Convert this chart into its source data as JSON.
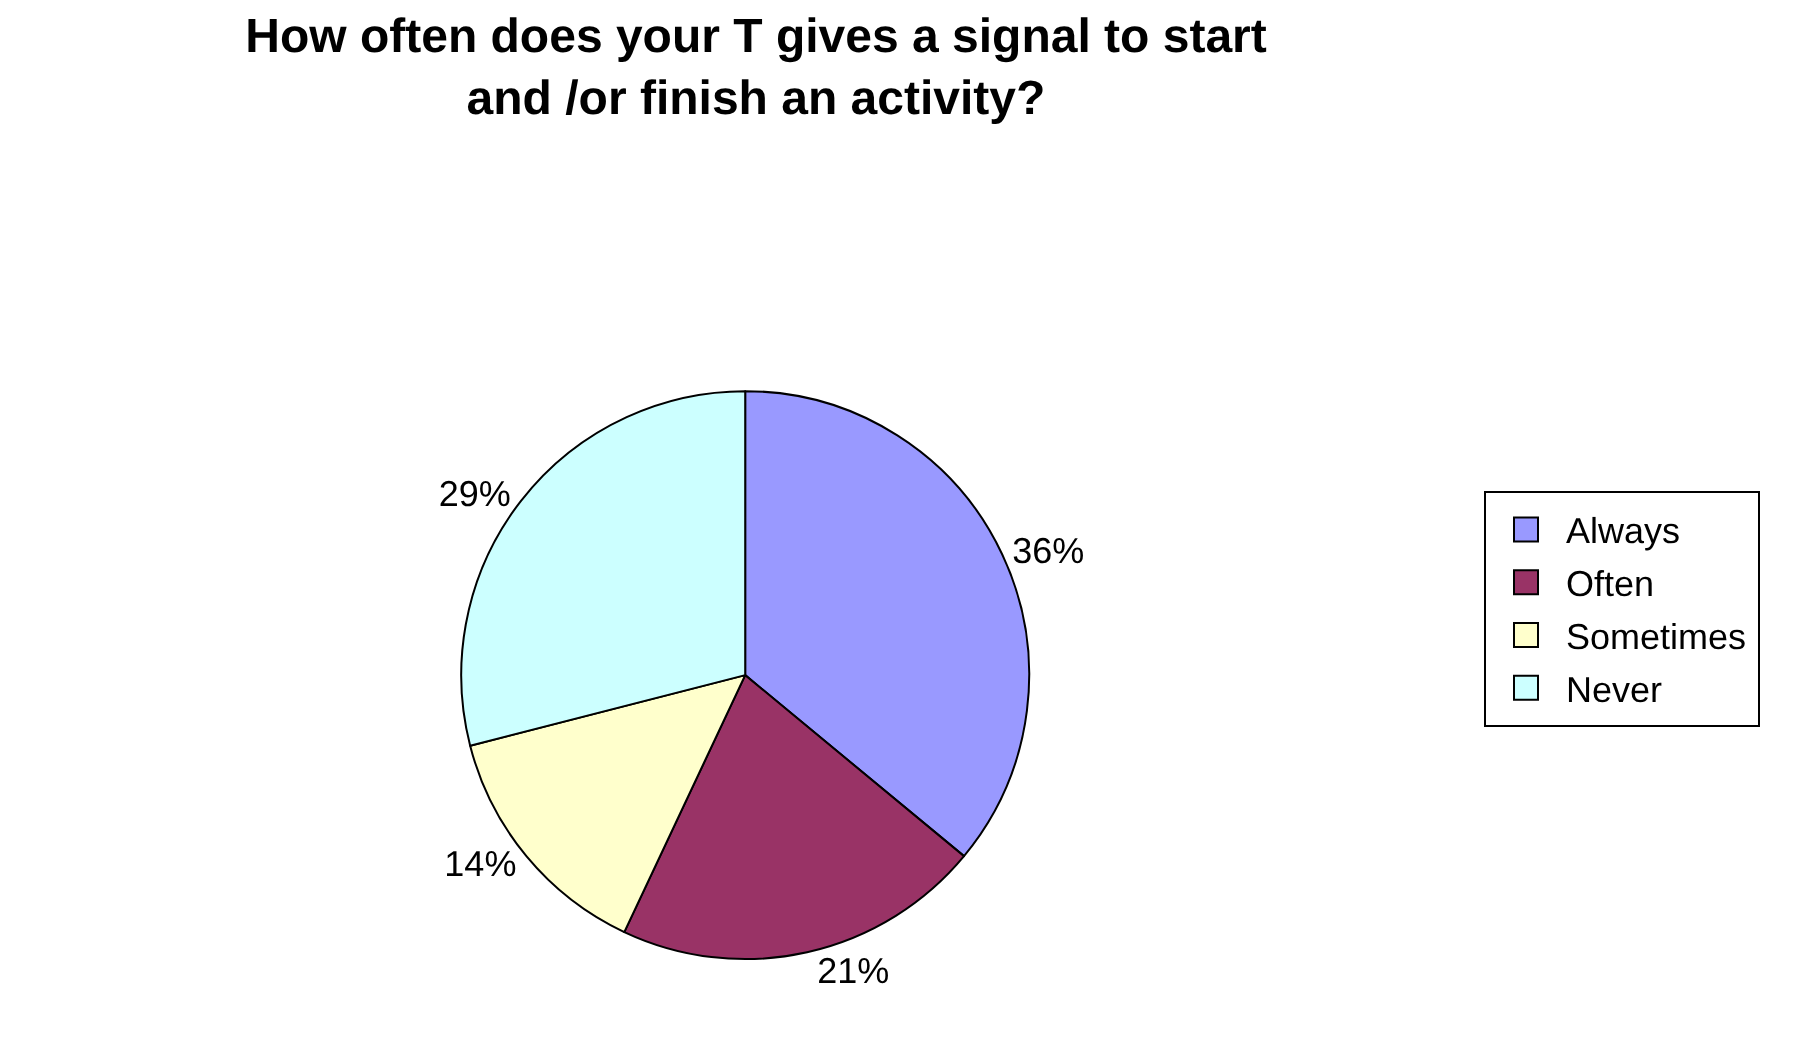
{
  "chart_data": {
    "type": "pie",
    "title": "How often does your T gives a signal to start and /or finish an activity?",
    "categories": [
      "Always",
      "Often",
      "Sometimes",
      "Never"
    ],
    "values": [
      36,
      21,
      14,
      29
    ],
    "value_labels": [
      "36%",
      "21%",
      "14%",
      "29%"
    ],
    "colors": [
      "#9999ff",
      "#993366",
      "#ffffcc",
      "#ccffff"
    ],
    "legend": "right"
  }
}
